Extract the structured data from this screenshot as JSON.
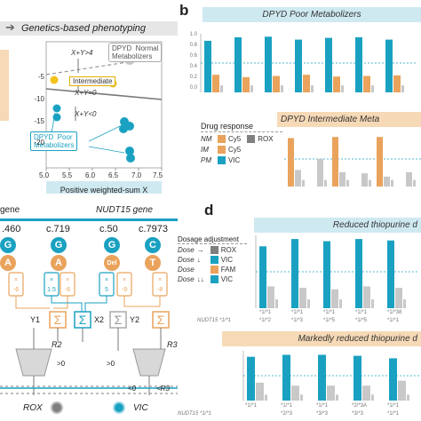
{
  "colors": {
    "teal": "#1aa1c1",
    "orange": "#e9a35c",
    "yellow": "#f1c21b",
    "gray": "#c8c8c8",
    "darkgray": "#7f7f7f",
    "lightblue": "#cfe9f1",
    "lightorange": "#f6d9b6"
  },
  "panel_a": {
    "title": "Genetics-based phenotyping",
    "labels": {
      "normal": "DPYD  Normal\nMetabolizers",
      "intermediate": "Intermediate",
      "poor": "DPYD  Poor\nMetabolizers",
      "rule1": "X+Y>4",
      "rule2": "X+Y=0",
      "rule3": "X+Y<0",
      "xlabel": "Positive weighted-sum X"
    },
    "xticks": [
      "5.0",
      "5.5",
      "6.0",
      "6.5",
      "7.0",
      "7.5"
    ],
    "yticks": [
      "-5",
      "-10",
      "-15",
      "-20"
    ]
  },
  "panel_b": {
    "letter": "b",
    "top_header": "DPYD Poor Metabolizers",
    "bottom_header": "DPYD Intermediate Meta",
    "yticks": [
      "1.0",
      "0.8",
      "0.6",
      "0.4",
      "0.2",
      "0.0"
    ],
    "legend": {
      "title": "Drug response",
      "rows": [
        {
          "code": "NM",
          "a": "Cy5",
          "b": "ROX"
        },
        {
          "code": "IM",
          "a": "Cy5",
          "b": ""
        },
        {
          "code": "PM",
          "a": "VIC",
          "b": ""
        }
      ]
    }
  },
  "panel_c": {
    "gene_left": "gene",
    "gene_right": "NUDT15 gene",
    "positions": [
      ".460",
      "c.719",
      "c.50",
      "c.7973"
    ],
    "alleles": [
      "G",
      "A",
      "G",
      "A",
      "G",
      "Del",
      "C",
      "T"
    ],
    "weights": [
      "×\n-6",
      "×\n1.5",
      "×\n-6",
      "×\n5",
      "×\n-9",
      "×\n-8"
    ],
    "nodes": [
      "Y1",
      "X2",
      "Y2",
      "R2",
      "R3"
    ],
    "thresholds": [
      ">0",
      ">0",
      "<0",
      "<R3"
    ],
    "outputs": [
      "ROX",
      "VIC"
    ]
  },
  "panel_d": {
    "letter": "d",
    "top_header": "Reduced thiopurine d",
    "bottom_header": "Markedly reduced thiopurine d",
    "dosage": {
      "title": "Dosage adjustment",
      "rows": [
        {
          "label": "Dose",
          "arrow": "→",
          "chan": "ROX"
        },
        {
          "label": "Dose",
          "arrow": "↓",
          "chan": "VIC"
        },
        {
          "label": "Dose",
          "arrow": "",
          "chan": "FAM"
        },
        {
          "label": "Dose",
          "arrow": "↓↓",
          "chan": "VIC"
        }
      ]
    },
    "top_xlabels": [
      "*1/*1",
      "*1/*1",
      "*1/*1",
      "*1/*1",
      "*1/*38"
    ],
    "top_row2": [
      "NUDT15 *1/*1",
      "*1/*2",
      "*1/*3",
      "*1/*5",
      "*1/*5",
      "*1/*1"
    ],
    "bottom_xlabels": [
      "*1/*1",
      "*1/*1",
      "*1/*1",
      "*2/*3A",
      "*1/*1"
    ],
    "bottom_row2": [
      "NUDT15 *1/*1",
      "*2/*3",
      "*3/*3",
      "*3/*3",
      "*1/*1"
    ]
  },
  "chart_data": [
    {
      "type": "bar",
      "title": "DPYD Poor Metabolizers",
      "ylim": [
        0,
        1.0
      ],
      "series": [
        {
          "name": "VIC",
          "values": [
            0.88,
            0.94,
            0.95,
            0.9,
            0.93,
            0.94,
            0.9
          ]
        },
        {
          "name": "Cy5",
          "values": [
            0.3,
            0.26,
            0.28,
            0.3,
            0.27,
            0.28,
            0.29
          ]
        }
      ]
    },
    {
      "type": "bar",
      "title": "DPYD Intermediate Meta",
      "ylim": [
        0,
        1.0
      ],
      "series": [
        {
          "name": "Cy5",
          "values": [
            0.88,
            0.0,
            0.9,
            0.0,
            0.9,
            0.0
          ]
        },
        {
          "name": "ROX",
          "values": [
            0.3,
            0.5,
            0.26,
            0.24,
            0.18,
            0.26
          ]
        }
      ]
    },
    {
      "type": "bar",
      "title": "Reduced thiopurine d",
      "ylim": [
        0,
        1.0
      ],
      "series": [
        {
          "name": "VIC",
          "values": [
            0.85,
            0.95,
            0.92,
            0.95,
            0.93
          ]
        },
        {
          "name": "ROX",
          "values": [
            0.3,
            0.28,
            0.26,
            0.3,
            0.28
          ]
        }
      ]
    },
    {
      "type": "bar",
      "title": "Markedly reduced thiopurine d",
      "ylim": [
        0,
        1.0
      ],
      "series": [
        {
          "name": "VIC",
          "values": [
            0.88,
            0.92,
            0.92,
            0.9,
            0.85
          ]
        },
        {
          "name": "ROX",
          "values": [
            0.36,
            0.3,
            0.3,
            0.3,
            0.4
          ]
        }
      ]
    }
  ]
}
